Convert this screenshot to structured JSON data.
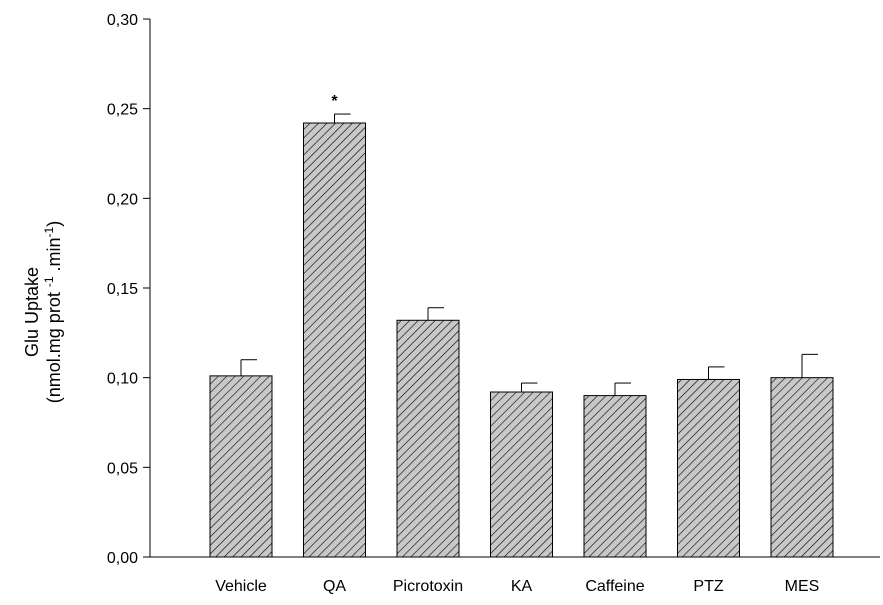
{
  "chart_data": {
    "type": "bar",
    "categories": [
      "Vehicle",
      "QA",
      "Picrotoxin",
      "KA",
      "Caffeine",
      "PTZ",
      "MES"
    ],
    "values": [
      0.101,
      0.242,
      0.132,
      0.092,
      0.09,
      0.099,
      0.1
    ],
    "errors": [
      0.009,
      0.005,
      0.007,
      0.005,
      0.007,
      0.007,
      0.013
    ],
    "annotations": [
      {
        "category": "QA",
        "text": "*"
      }
    ],
    "ylim": [
      0,
      0.3
    ],
    "yticks": [
      "0,00",
      "0,05",
      "0,10",
      "0,15",
      "0,20",
      "0,25",
      "0,30"
    ],
    "ytick_values": [
      0,
      0.05,
      0.1,
      0.15,
      0.2,
      0.25,
      0.3
    ],
    "ylabel": {
      "line1": "Glu Uptake",
      "line2_a": "(nmol.mg prot ",
      "line2_sup1": "-1",
      "line2_b": " .min",
      "line2_sup2": "-1",
      "line2_c": ")"
    },
    "xlabel": "",
    "grid": false,
    "bar_fill": "#c8c8c8",
    "hatch_color": "#000000"
  }
}
